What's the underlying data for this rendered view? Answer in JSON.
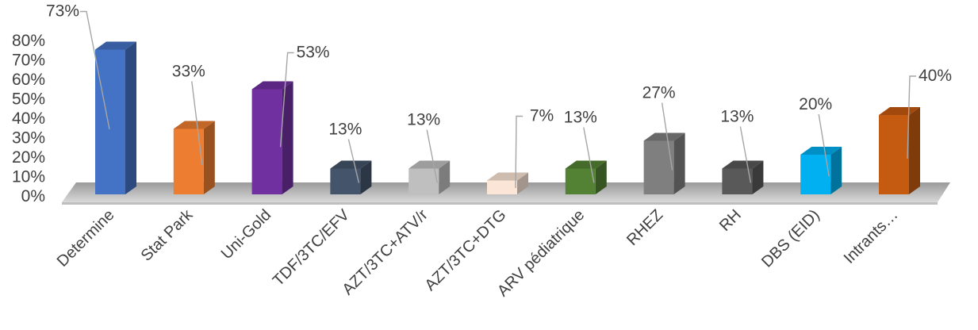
{
  "chart_data": {
    "type": "bar",
    "categories": [
      "Determine",
      "Stat Park",
      "Uni-Gold",
      "TDF/3TC/EFV",
      "AZT/3TC+ATV/r",
      "AZT/3TC+DTG",
      "ARV pédiatrique",
      "RHEZ",
      "RH",
      "DBS (EID)",
      "Intrants…"
    ],
    "values": [
      73,
      33,
      53,
      13,
      13,
      7,
      13,
      27,
      13,
      20,
      40
    ],
    "data_labels": [
      "73%",
      "33%",
      "53%",
      "13%",
      "13%",
      "7%",
      "13%",
      "27%",
      "13%",
      "20%",
      "40%"
    ],
    "colors": [
      "#4472C4",
      "#ED7D31",
      "#7030A0",
      "#44546A",
      "#BFBFBF",
      "#FBE5D6",
      "#548235",
      "#7F7F7F",
      "#595959",
      "#00B0F0",
      "#C55A11"
    ],
    "y_ticks": [
      "0%",
      "10%",
      "20%",
      "30%",
      "40%",
      "50%",
      "60%",
      "70%",
      "80%"
    ],
    "ylim": [
      0,
      80
    ],
    "style": "3d-column",
    "grid": false,
    "legend": "none"
  }
}
